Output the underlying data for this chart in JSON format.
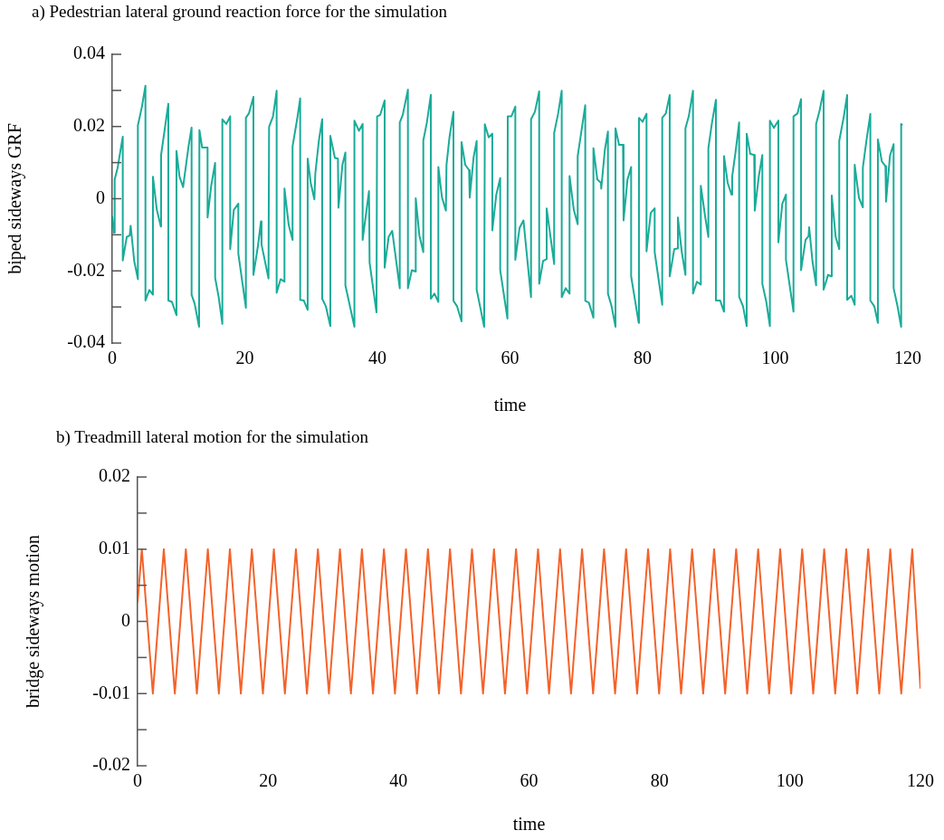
{
  "chart_data": [
    {
      "type": "line",
      "title": "a) Pedestrian lateral ground reaction force for the simulation",
      "xlabel": "time",
      "ylabel": "biped sideways GRF",
      "xlim": [
        0,
        120
      ],
      "xticks": [
        0,
        20,
        40,
        60,
        80,
        100,
        120
      ],
      "ylim": [
        -0.04,
        0.04
      ],
      "yticks": [
        -0.04,
        {
          "value": -0.03,
          "label": null
        },
        -0.02,
        {
          "value": -0.01,
          "label": null
        },
        0,
        {
          "value": 0.01,
          "label": null
        },
        0.02,
        {
          "value": 0.03,
          "label": null
        },
        0.04
      ],
      "series": [
        {
          "color": "#1aab99",
          "x": [
            0,
            0.23,
            0.37,
            0.37,
            0.82,
            1.59,
            1.59,
            2.19,
            2.64,
            2.78,
            3.32,
            3.87,
            3.87,
            4.46,
            5.01,
            5.01,
            5.6,
            6.14,
            6.14,
            6.73,
            7.33,
            7.37,
            7.87,
            8.46,
            8.46,
            9.01,
            9.69,
            9.69,
            10.15,
            10.69,
            11.51,
            11.97,
            11.97,
            12.42,
            13.1,
            13.15,
            13.56,
            14.38,
            14.38,
            14.93,
            15.52,
            15.52,
            16.06,
            16.61,
            16.61,
            17.2,
            17.79,
            17.79,
            18.34,
            19.02,
            19.02,
            20.16,
            20.16,
            20.61,
            21.3,
            21.3,
            21.98,
            22.43,
            22.52,
            23.57,
            23.66,
            24.25,
            24.8,
            24.8,
            25.39,
            25.98,
            25.98,
            26.62,
            27.2,
            27.2,
            27.89,
            28.35,
            28.35,
            28.89,
            29.48,
            29.48,
            29.94,
            30.49,
            30.63,
            31.17,
            31.67,
            31.67,
            32.22,
            32.9,
            32.9,
            33.59,
            34.04,
            34.13,
            34.72,
            35.17,
            35.17,
            36.53,
            36.53,
            37.22,
            37.77,
            37.77,
            38.73,
            38.82,
            39.86,
            39.95,
            40.41,
            41.09,
            41.09,
            41.69,
            42.23,
            43.37,
            43.37,
            43.82,
            44.6,
            44.6,
            45.19,
            45.78,
            45.78,
            46.33,
            46.92,
            46.92,
            47.46,
            48.06,
            48.06,
            48.6,
            49.19,
            49.19,
            49.74,
            50.33,
            50.42,
            50.87,
            51.47,
            51.47,
            52.01,
            52.69,
            52.69,
            53.24,
            53.83,
            53.92,
            54.51,
            54.97,
            54.97,
            55.52,
            56.1,
            56.2,
            56.79,
            57.33,
            57.33,
            57.93,
            58.52,
            58.52,
            59.61,
            59.66,
            60.2,
            60.8,
            60.8,
            61.44,
            62.03,
            63.17,
            63.17,
            63.76,
            64.4,
            64.4,
            64.98,
            65.53,
            65.53,
            66.66,
            66.66,
            67.26,
            67.8,
            67.8,
            68.39,
            68.98,
            68.98,
            69.62,
            70.21,
            70.21,
            70.76,
            71.35,
            71.35,
            71.9,
            72.58,
            72.58,
            73.17,
            73.72,
            73.76,
            74.31,
            74.77,
            74.77,
            75.32,
            75.91,
            75.91,
            76.45,
            77.04,
            77.13,
            77.72,
            78.27,
            78.27,
            79.41,
            79.45,
            80,
            80.59,
            80.59,
            81.23,
            81.82,
            81.82,
            82.96,
            82.96,
            83.5,
            84.09,
            84.09,
            84.77,
            85.23,
            85.32,
            85.91,
            86.46,
            86.46,
            86.96,
            87.6,
            87.6,
            88.19,
            88.78,
            88.78,
            89.42,
            89.92,
            89.92,
            90.47,
            91.06,
            91.06,
            91.69,
            92.28,
            92.28,
            92.83,
            93.42,
            93.51,
            94.01,
            94.56,
            94.56,
            95.15,
            95.7,
            95.7,
            96.24,
            96.83,
            96.92,
            97.52,
            98.06,
            98.06,
            98.66,
            99.2,
            99.2,
            99.8,
            100.48,
            100.48,
            101.07,
            101.62,
            101.62,
            102.76,
            102.76,
            103.35,
            103.9,
            103.9,
            104.58,
            105.03,
            105.12,
            105.62,
            106.17,
            106.17,
            106.71,
            107.3,
            107.3,
            107.98,
            108.44,
            108.53,
            109.12,
            109.66,
            109.66,
            110.35,
            110.85,
            110.85,
            111.49,
            111.99,
            111.99,
            112.63,
            113.22,
            113.22,
            113.76,
            114.35,
            114.35,
            114.95,
            115.49,
            115.49,
            116.09,
            116.63,
            116.72,
            117.31,
            117.86,
            117.86,
            118.45,
            119,
            119,
            119.2
          ],
          "values": [
            -0.0048,
            -0.0094,
            -0.0094,
            0.0053,
            0.0086,
            0.0172,
            -0.0171,
            -0.0106,
            -0.0102,
            -0.0075,
            -0.0173,
            -0.0223,
            0.0203,
            0.0253,
            0.0313,
            -0.0282,
            -0.0253,
            -0.0266,
            0.0061,
            -0.0031,
            -0.0077,
            0.0121,
            0.0186,
            0.0263,
            -0.0282,
            -0.0286,
            -0.0323,
            0.0132,
            0.0061,
            0.0032,
            0.0145,
            0.0197,
            -0.0266,
            -0.029,
            -0.0355,
            0.019,
            0.0142,
            0.0142,
            -0.0052,
            0.0036,
            0.0099,
            -0.0219,
            -0.0273,
            -0.0347,
            0.022,
            0.0207,
            0.0228,
            -0.014,
            -0.0031,
            -0.0014,
            -0.0152,
            -0.0302,
            0.0224,
            0.0236,
            0.0282,
            -0.0211,
            -0.0131,
            -0.0063,
            -0.0127,
            -0.0221,
            0.0199,
            0.0228,
            0.0299,
            -0.0261,
            -0.0223,
            -0.023,
            0.0028,
            -0.0073,
            -0.0114,
            0.0145,
            0.022,
            0.0278,
            -0.028,
            -0.0282,
            -0.0308,
            0.0111,
            0.0044,
            -0.0002,
            0.0069,
            0.0161,
            0.022,
            -0.0277,
            -0.0298,
            -0.0353,
            0.0174,
            0.0113,
            0.0111,
            -0.0025,
            0.0094,
            0.0128,
            -0.024,
            -0.0355,
            0.0216,
            0.0188,
            0.0207,
            -0.0114,
            0.0021,
            -0.0177,
            -0.0315,
            0.0228,
            0.0232,
            0.0272,
            -0.0191,
            -0.0106,
            -0.0089,
            -0.0248,
            0.0211,
            0.0232,
            0.0302,
            -0.0248,
            -0.0198,
            -0.0202,
            0.0001,
            -0.0102,
            -0.0148,
            0.0161,
            0.0211,
            0.0288,
            -0.0277,
            -0.0263,
            -0.0286,
            0.0088,
            0.0003,
            -0.0033,
            0.0094,
            0.017,
            0.0241,
            -0.0283,
            -0.0298,
            -0.034,
            0.0157,
            0.0094,
            0.0079,
            0.0003,
            0.0115,
            0.016,
            -0.0252,
            -0.0302,
            -0.0355,
            0.0206,
            0.017,
            0.018,
            -0.0088,
            0.0011,
            0.0057,
            -0.0198,
            -0.0332,
            0.0228,
            0.0228,
            0.0255,
            -0.0169,
            -0.0081,
            -0.006,
            -0.0273,
            0.022,
            0.0241,
            0.0297,
            -0.0236,
            -0.0173,
            -0.0167,
            -0.0027,
            -0.0181,
            0.0182,
            0.0236,
            0.0299,
            -0.0273,
            -0.0248,
            -0.0263,
            0.0063,
            -0.0031,
            -0.0071,
            0.0118,
            0.0186,
            0.0259,
            -0.0283,
            -0.0288,
            -0.033,
            0.014,
            0.0053,
            0.0044,
            0.0028,
            0.0136,
            0.0186,
            -0.0263,
            -0.0298,
            -0.0355,
            0.0195,
            0.0149,
            0.0149,
            -0.006,
            0.0053,
            0.0088,
            -0.0215,
            -0.0344,
            0.0224,
            0.0213,
            0.0235,
            -0.0146,
            -0.0039,
            -0.0027,
            -0.0148,
            -0.0294,
            0.0224,
            0.0236,
            0.0287,
            -0.0215,
            -0.014,
            -0.0138,
            -0.0052,
            -0.0148,
            -0.0211,
            0.0195,
            0.0228,
            0.0299,
            -0.0263,
            -0.023,
            -0.0238,
            0.0036,
            -0.0048,
            -0.0106,
            0.014,
            0.0211,
            0.0274,
            -0.0282,
            -0.0282,
            -0.0313,
            0.0118,
            0.0044,
            0.0011,
            0.0061,
            0.0128,
            0.0211,
            -0.0272,
            -0.0298,
            -0.0353,
            0.018,
            0.0124,
            0.0121,
            -0.0033,
            0.0061,
            0.0121,
            -0.0236,
            -0.0286,
            -0.0353,
            0.0216,
            0.0196,
            0.0216,
            -0.0121,
            -0.0014,
            0.0011,
            -0.0169,
            -0.0313,
            0.0228,
            0.0236,
            0.0276,
            -0.0198,
            -0.0114,
            -0.0104,
            -0.0079,
            -0.0173,
            -0.024,
            0.0207,
            0.0245,
            0.0299,
            -0.0252,
            -0.0211,
            -0.0215,
            0.0009,
            -0.0106,
            -0.014,
            0.016,
            0.0228,
            0.0287,
            -0.028,
            -0.0269,
            -0.0294,
            0.0094,
            0.0003,
            -0.0024,
            0.0086,
            0.0161,
            0.0235,
            -0.0282,
            -0.0298,
            -0.0344,
            0.0164,
            0.0103,
            0.009,
            -0.0008,
            0.0119,
            0.0151,
            -0.0248,
            -0.0298,
            -0.0355,
            0.0207,
            0.0203
          ]
        }
      ]
    },
    {
      "type": "line",
      "title": "b) Treadmill lateral motion for the simulation",
      "xlabel": "time",
      "ylabel": "bridge sideways motion",
      "xlim": [
        0,
        120
      ],
      "xticks": [
        0,
        20,
        40,
        60,
        80,
        100,
        120
      ],
      "ylim": [
        -0.02,
        0.02
      ],
      "yticks": [
        -0.02,
        {
          "value": -0.015,
          "label": null
        },
        -0.01,
        {
          "value": -0.005,
          "label": null
        },
        0,
        {
          "value": 0.005,
          "label": null
        },
        0.01,
        {
          "value": 0.015,
          "label": null
        },
        0.02
      ],
      "series": [
        {
          "color": "#f4622a",
          "x": [
            0,
            0.65,
            2.34,
            4.02,
            5.71,
            7.4,
            9.09,
            10.77,
            12.46,
            14.15,
            15.83,
            17.52,
            19.21,
            20.89,
            22.58,
            24.27,
            25.96,
            27.64,
            29.33,
            31.02,
            32.7,
            34.39,
            36.08,
            37.76,
            39.45,
            41.14,
            42.83,
            44.51,
            46.2,
            47.89,
            49.57,
            51.26,
            52.95,
            54.63,
            56.32,
            58.01,
            59.7,
            61.38,
            63.07,
            64.76,
            66.44,
            68.13,
            69.82,
            71.5,
            73.19,
            74.88,
            76.57,
            78.25,
            79.94,
            81.63,
            83.31,
            85,
            86.69,
            88.37,
            90.06,
            91.75,
            93.44,
            95.12,
            96.81,
            98.5,
            100.18,
            101.87,
            103.56,
            105.24,
            106.93,
            108.62,
            110.31,
            111.99,
            113.68,
            115.37,
            117.05,
            118.74,
            120
          ],
          "values": [
            0.0026,
            0.01,
            -0.01,
            0.01,
            -0.01,
            0.01,
            -0.01,
            0.01,
            -0.01,
            0.01,
            -0.01,
            0.01,
            -0.01,
            0.01,
            -0.01,
            0.01,
            -0.01,
            0.01,
            -0.01,
            0.01,
            -0.01,
            0.01,
            -0.01,
            0.01,
            -0.01,
            0.01,
            -0.01,
            0.01,
            -0.01,
            0.01,
            -0.01,
            0.01,
            -0.01,
            0.01,
            -0.01,
            0.01,
            -0.01,
            0.01,
            -0.01,
            0.01,
            -0.01,
            0.01,
            -0.01,
            0.01,
            -0.01,
            0.01,
            -0.01,
            0.01,
            -0.01,
            0.01,
            -0.01,
            0.01,
            -0.01,
            0.01,
            -0.01,
            0.01,
            -0.01,
            0.01,
            -0.01,
            0.01,
            -0.01,
            0.01,
            -0.01,
            0.01,
            -0.01,
            0.01,
            -0.01,
            0.01,
            -0.01,
            0.01,
            -0.01,
            0.01,
            -0.0093
          ]
        }
      ]
    }
  ]
}
